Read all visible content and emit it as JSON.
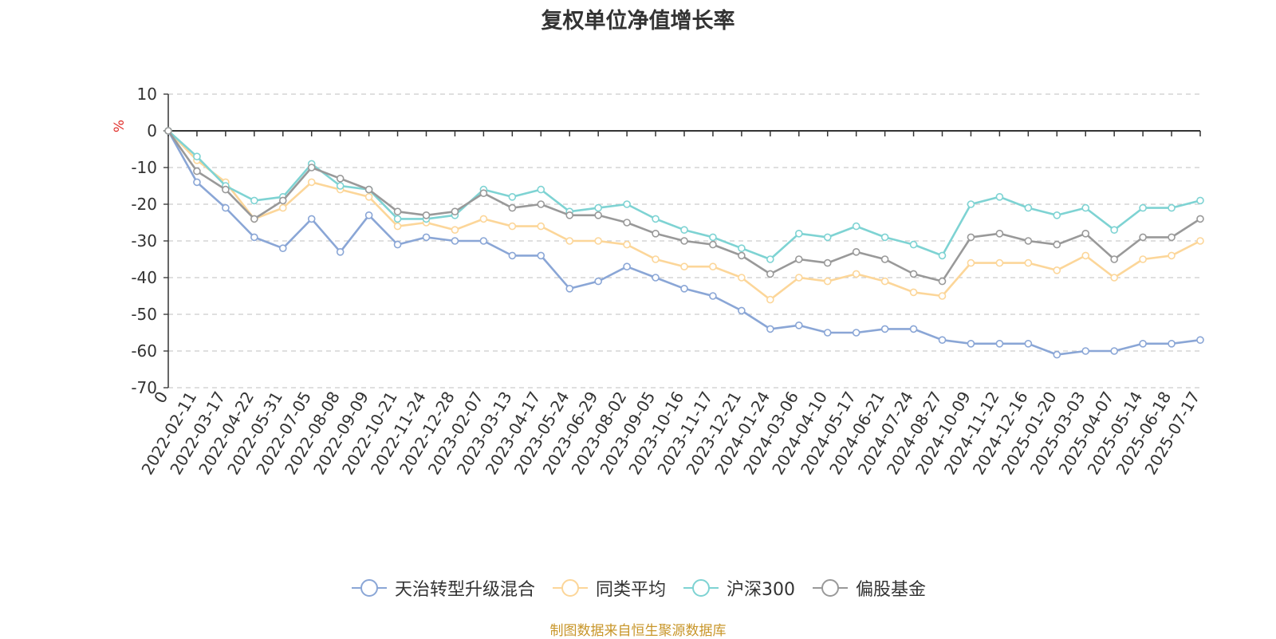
{
  "chart_data": {
    "type": "line",
    "title": "复权单位净值增长率",
    "ylabel": "%",
    "xlabel": "",
    "ylim": [
      -70,
      10
    ],
    "y_ticks": [
      10,
      0,
      -10,
      -20,
      -30,
      -40,
      -50,
      -60,
      -70
    ],
    "grid": true,
    "legend_position": "bottom",
    "x_tick_labels": [
      "0",
      "2022-02-11",
      "2022-03-17",
      "2022-04-22",
      "2022-05-31",
      "2022-07-05",
      "2022-08-08",
      "2022-09-09",
      "2022-10-21",
      "2022-11-24",
      "2022-12-28",
      "2023-02-07",
      "2023-03-13",
      "2023-04-17",
      "2023-05-24",
      "2023-06-29",
      "2023-08-02",
      "2023-09-05",
      "2023-10-16",
      "2023-11-17",
      "2023-12-21",
      "2024-01-24",
      "2024-03-06",
      "2024-04-10",
      "2024-05-17",
      "2024-06-21",
      "2024-07-24",
      "2024-08-27",
      "2024-10-09",
      "2024-11-12",
      "2024-12-16",
      "2025-01-20",
      "2025-03-03",
      "2025-04-07",
      "2025-05-14",
      "2025-06-18",
      "2025-07-17"
    ],
    "x": [
      "0",
      "2022-02-11",
      "2022-03-17",
      "2022-04-22",
      "2022-05-31",
      "2022-07-05",
      "2022-08-08",
      "2022-09-09",
      "2022-10-21",
      "2022-11-24",
      "2022-12-28",
      "2023-02-07",
      "2023-03-13",
      "2023-04-17",
      "2023-05-24",
      "2023-06-29",
      "2023-08-02",
      "2023-09-05",
      "2023-10-16",
      "2023-11-17",
      "2023-12-21",
      "2024-01-24",
      "2024-03-06",
      "2024-04-10",
      "2024-05-17",
      "2024-06-21",
      "2024-07-24",
      "2024-08-27",
      "2024-10-09",
      "2024-11-12",
      "2024-12-16",
      "2025-01-20",
      "2025-03-03",
      "2025-04-07",
      "2025-05-14",
      "2025-06-18",
      "2025-07-17"
    ],
    "series": [
      {
        "name": "天治转型升级混合",
        "color": "#8aa6d6",
        "values": [
          0,
          -14,
          -21,
          -29,
          -32,
          -24,
          -33,
          -23,
          -31,
          -29,
          -30,
          -30,
          -34,
          -34,
          -43,
          -41,
          -37,
          -40,
          -43,
          -45,
          -49,
          -54,
          -53,
          -55,
          -55,
          -54,
          -54,
          -57,
          -58,
          -58,
          -58,
          -61,
          -60,
          -60,
          -58,
          -58,
          -57
        ]
      },
      {
        "name": "同类平均",
        "color": "#fcd699",
        "values": [
          0,
          -8,
          -14,
          -24,
          -21,
          -14,
          -16,
          -18,
          -26,
          -25,
          -27,
          -24,
          -26,
          -26,
          -30,
          -30,
          -31,
          -35,
          -37,
          -37,
          -40,
          -46,
          -40,
          -41,
          -39,
          -41,
          -44,
          -45,
          -36,
          -36,
          -36,
          -38,
          -34,
          -40,
          -35,
          -34,
          -30
        ]
      },
      {
        "name": "沪深300",
        "color": "#7ed3d3",
        "values": [
          0,
          -7,
          -15,
          -19,
          -18,
          -9,
          -15,
          -16,
          -24,
          -24,
          -23,
          -16,
          -18,
          -16,
          -22,
          -21,
          -20,
          -24,
          -27,
          -29,
          -32,
          -35,
          -28,
          -29,
          -26,
          -29,
          -31,
          -34,
          -20,
          -18,
          -21,
          -23,
          -21,
          -27,
          -21,
          -21,
          -19
        ]
      },
      {
        "name": "偏股基金",
        "color": "#999999",
        "values": [
          0,
          -11,
          -16,
          -24,
          -19,
          -10,
          -13,
          -16,
          -22,
          -23,
          -22,
          -17,
          -21,
          -20,
          -23,
          -23,
          -25,
          -28,
          -30,
          -31,
          -34,
          -39,
          -35,
          -36,
          -33,
          -35,
          -39,
          -41,
          -29,
          -28,
          -30,
          -31,
          -28,
          -35,
          -29,
          -29,
          -24
        ]
      }
    ]
  },
  "footer": {
    "source": "制图数据来自恒生聚源数据库"
  }
}
